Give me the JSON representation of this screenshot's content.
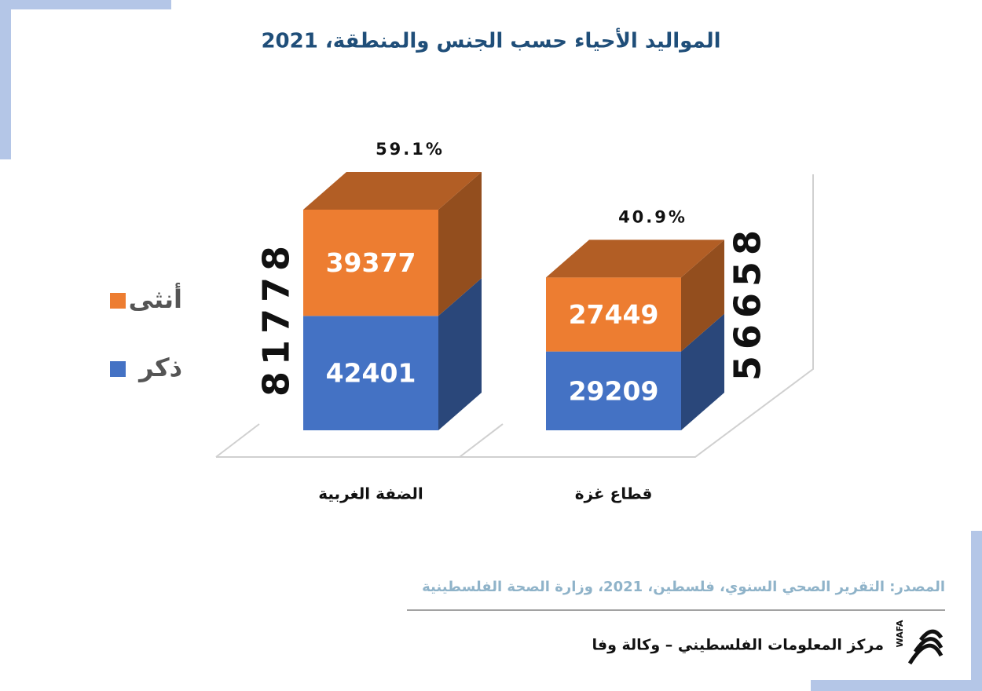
{
  "chart_data": {
    "type": "bar",
    "stacked": true,
    "title": "المواليد الأحياء حسب الجنس والمنطقة، 2021",
    "categories": [
      "الضفة الغربية",
      "قطاع غزة"
    ],
    "series": [
      {
        "name": "ذكر",
        "color": "#4472c4",
        "values": [
          42401,
          29209
        ]
      },
      {
        "name": "أنثى",
        "color": "#ed7d31",
        "values": [
          39377,
          27449
        ]
      }
    ],
    "totals": [
      81778,
      56658
    ],
    "shares": {
      "values": [
        59.1,
        40.9
      ],
      "value_labels": [
        "59.1%",
        "40.9%"
      ]
    }
  },
  "source": "المصدر: التقرير الصحي السنوي، فلسطين، 2021، وزارة الصحة الفلسطينية",
  "footer": "مركز المعلومات الفلسطيني – وكالة وفا",
  "logo_text": "WAFA"
}
